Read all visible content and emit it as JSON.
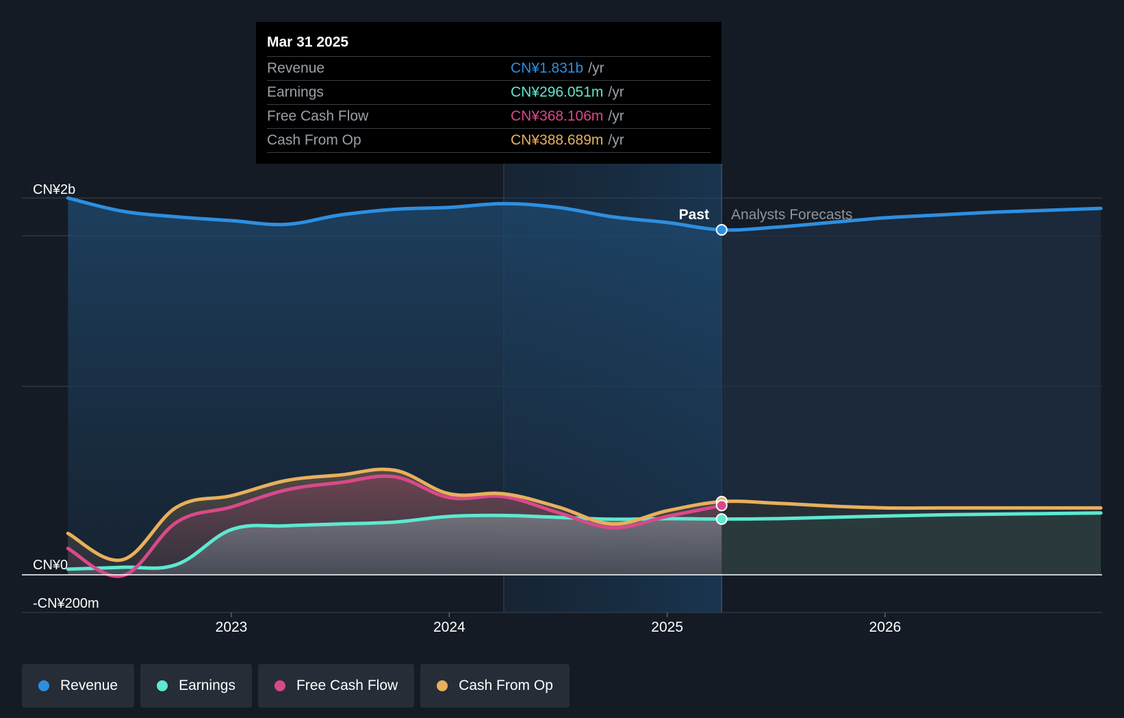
{
  "tooltip": {
    "date": "Mar 31 2025",
    "rows": [
      {
        "label": "Revenue",
        "value": "CN¥1.831b",
        "unit": "/yr",
        "color": "#2d8fe0"
      },
      {
        "label": "Earnings",
        "value": "CN¥296.051m",
        "unit": "/yr",
        "color": "#5ee8d0"
      },
      {
        "label": "Free Cash Flow",
        "value": "CN¥368.106m",
        "unit": "/yr",
        "color": "#d9498a"
      },
      {
        "label": "Cash From Op",
        "value": "CN¥388.689m",
        "unit": "/yr",
        "color": "#e8b05c"
      }
    ]
  },
  "labels": {
    "past": "Past",
    "forecast": "Analysts Forecasts"
  },
  "legend": [
    {
      "label": "Revenue",
      "color": "#2d8fe0"
    },
    {
      "label": "Earnings",
      "color": "#5ee8d0"
    },
    {
      "label": "Free Cash Flow",
      "color": "#d9498a"
    },
    {
      "label": "Cash From Op",
      "color": "#e8b05c"
    }
  ],
  "chart_data": {
    "type": "line",
    "y_tick_labels": [
      {
        "value": 2000,
        "label": "CN¥2b"
      },
      {
        "value": 0,
        "label": "CN¥0"
      },
      {
        "value": -200,
        "label": "-CN¥200m"
      }
    ],
    "x_tick_labels": [
      {
        "value": 2023.0,
        "label": "2023"
      },
      {
        "value": 2024.0,
        "label": "2024"
      },
      {
        "value": 2025.0,
        "label": "2025"
      },
      {
        "value": 2026.0,
        "label": "2026"
      }
    ],
    "xlim": [
      2022.05,
      2026.99
    ],
    "ylim": [
      -200,
      2200
    ],
    "gridlines_y": [
      2000,
      1800,
      1000,
      0,
      -200
    ],
    "past_end": 2025.25,
    "highlight_start": 2024.25,
    "series": [
      {
        "name": "Revenue",
        "color": "#2d8fe0",
        "dashed_forecast": false,
        "x": [
          2022.25,
          2022.5,
          2022.75,
          2023.0,
          2023.25,
          2023.5,
          2023.75,
          2024.0,
          2024.25,
          2024.5,
          2024.75,
          2025.0,
          2025.25,
          2025.5,
          2025.75,
          2026.0,
          2026.25,
          2026.5,
          2026.75,
          2026.99
        ],
        "values": [
          2000,
          1930,
          1900,
          1880,
          1860,
          1910,
          1940,
          1950,
          1970,
          1950,
          1900,
          1870,
          1831,
          1845,
          1870,
          1895,
          1910,
          1925,
          1935,
          1945
        ]
      },
      {
        "name": "Earnings",
        "color": "#5ee8d0",
        "x": [
          2022.25,
          2022.5,
          2022.75,
          2023.0,
          2023.25,
          2023.5,
          2023.75,
          2024.0,
          2024.25,
          2024.5,
          2024.75,
          2025.0,
          2025.25,
          2025.5,
          2025.75,
          2026.0,
          2026.25,
          2026.5,
          2026.75,
          2026.99
        ],
        "values": [
          30,
          40,
          55,
          240,
          260,
          270,
          280,
          310,
          315,
          305,
          295,
          298,
          296,
          298,
          305,
          312,
          318,
          322,
          325,
          328
        ]
      },
      {
        "name": "Free Cash Flow",
        "color": "#d9498a",
        "x": [
          2022.25,
          2022.5,
          2022.75,
          2023.0,
          2023.25,
          2023.5,
          2023.75,
          2024.0,
          2024.25,
          2024.5,
          2024.75,
          2025.0,
          2025.25
        ],
        "values": [
          140,
          -5,
          280,
          360,
          450,
          490,
          520,
          410,
          415,
          330,
          250,
          310,
          368
        ]
      },
      {
        "name": "Cash From Op",
        "color": "#e8b05c",
        "x": [
          2022.25,
          2022.5,
          2022.75,
          2023.0,
          2023.25,
          2023.5,
          2023.75,
          2024.0,
          2024.25,
          2024.5,
          2024.75,
          2025.0,
          2025.25,
          2025.5,
          2025.75,
          2026.0,
          2026.25,
          2026.5,
          2026.75,
          2026.99
        ],
        "values": [
          220,
          80,
          360,
          420,
          500,
          530,
          555,
          430,
          430,
          360,
          270,
          340,
          388,
          380,
          365,
          355,
          355,
          355,
          355,
          355
        ]
      }
    ]
  }
}
